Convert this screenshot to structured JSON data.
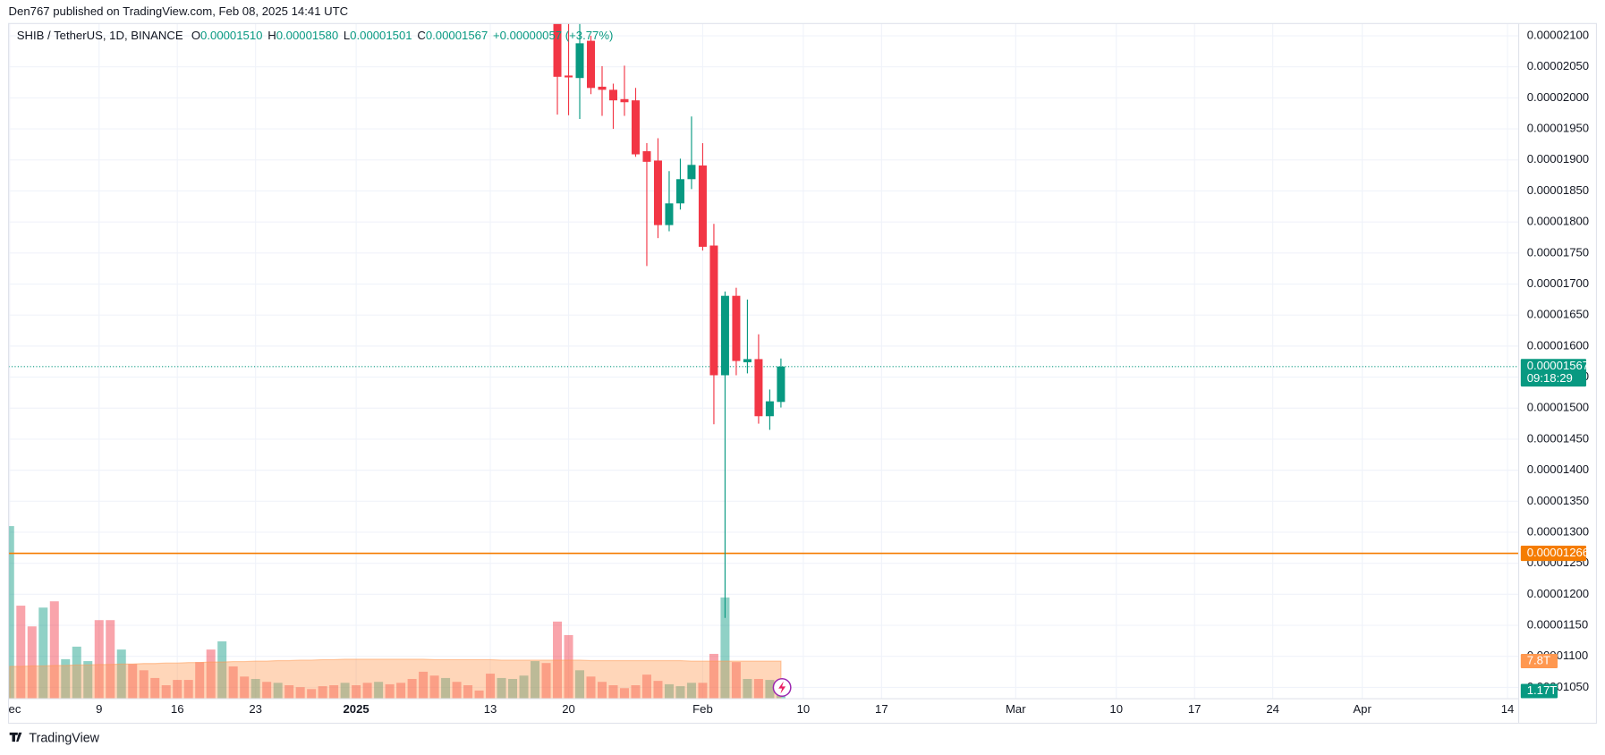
{
  "header": {
    "published": "Den767 published on TradingView.com, Feb 08, 2025 14:41 UTC"
  },
  "footer": {
    "brand": "TradingView"
  },
  "chart_data": {
    "type": "candlestick",
    "title": "SHIB / TetherUS, 1D, BINANCE",
    "quote": [
      {
        "key": "O",
        "value": "0.00001510"
      },
      {
        "key": "H",
        "value": "0.00001580"
      },
      {
        "key": "L",
        "value": "0.00001501"
      },
      {
        "key": "C",
        "value": "0.00001567"
      }
    ],
    "change": "+0.00000057 (+3.77%)",
    "up_color": "#089981",
    "down_color": "#f23645",
    "x": [
      49,
      50,
      51,
      52,
      53,
      54,
      55,
      56,
      57,
      58,
      59,
      60,
      61,
      62,
      63,
      64,
      65,
      66,
      67,
      68,
      69
    ],
    "open": [
      2.13e-05,
      2.036e-05,
      2.032e-05,
      2.092e-05,
      2.018e-05,
      2.013e-05,
      1.998e-05,
      1.996e-05,
      1.914e-05,
      1.899e-05,
      1.795e-05,
      1.83e-05,
      1.869e-05,
      1.891e-05,
      1.762e-05,
      1.553e-05,
      1.681e-05,
      1.574e-05,
      1.579e-05,
      1.487e-05,
      1.51e-05
    ],
    "high": [
      2.16e-05,
      2.12e-05,
      2.12e-05,
      2.1e-05,
      2.051e-05,
      2.023e-05,
      2.052e-05,
      2.016e-05,
      1.927e-05,
      1.935e-05,
      1.882e-05,
      1.902e-05,
      1.97e-05,
      1.927e-05,
      1.797e-05,
      1.688e-05,
      1.694e-05,
      1.675e-05,
      1.619e-05,
      1.53e-05,
      1.58e-05
    ],
    "low": [
      1.973e-05,
      1.972e-05,
      1.966e-05,
      2.006e-05,
      1.971e-05,
      1.95e-05,
      1.971e-05,
      1.905e-05,
      1.729e-05,
      1.774e-05,
      1.785e-05,
      1.82e-05,
      1.853e-05,
      1.754e-05,
      1.474e-05,
      1.162e-05,
      1.553e-05,
      1.556e-05,
      1.475e-05,
      1.465e-05,
      1.501e-05
    ],
    "close": [
      2.034e-05,
      2.033e-05,
      2.088e-05,
      2.016e-05,
      2.013e-05,
      1.996e-05,
      1.993e-05,
      1.909e-05,
      1.897e-05,
      1.795e-05,
      1.83e-05,
      1.869e-05,
      1.892e-05,
      1.76e-05,
      1.553e-05,
      1.681e-05,
      1.576e-05,
      1.579e-05,
      1.487e-05,
      1.511e-05,
      1.567e-05
    ],
    "xlim": [
      -0.1,
      135
    ],
    "xticks": [
      {
        "value": 0,
        "label": "ec"
      },
      {
        "value": 8,
        "label": "9"
      },
      {
        "value": 15,
        "label": "16"
      },
      {
        "value": 22,
        "label": "23"
      },
      {
        "value": 31,
        "label": "2025"
      },
      {
        "value": 43,
        "label": "13"
      },
      {
        "value": 50,
        "label": "20"
      },
      {
        "value": 62,
        "label": "Feb"
      },
      {
        "value": 71,
        "label": "10"
      },
      {
        "value": 78,
        "label": "17"
      },
      {
        "value": 90,
        "label": "Mar"
      },
      {
        "value": 99,
        "label": "10"
      },
      {
        "value": 106,
        "label": "17"
      },
      {
        "value": 113,
        "label": "24"
      },
      {
        "value": 121,
        "label": "Apr"
      },
      {
        "value": 134,
        "label": "14"
      }
    ],
    "ylim": [
      1.0317e-05,
      2.1198e-05
    ],
    "yticks": [
      {
        "value": 2.1e-05,
        "label": "0.00002100"
      },
      {
        "value": 2.05e-05,
        "label": "0.00002050"
      },
      {
        "value": 2e-05,
        "label": "0.00002000"
      },
      {
        "value": 1.95e-05,
        "label": "0.00001950"
      },
      {
        "value": 1.9e-05,
        "label": "0.00001900"
      },
      {
        "value": 1.85e-05,
        "label": "0.00001850"
      },
      {
        "value": 1.8e-05,
        "label": "0.00001800"
      },
      {
        "value": 1.75e-05,
        "label": "0.00001750"
      },
      {
        "value": 1.7e-05,
        "label": "0.00001700"
      },
      {
        "value": 1.65e-05,
        "label": "0.00001650"
      },
      {
        "value": 1.6e-05,
        "label": "0.00001600"
      },
      {
        "value": 1.55e-05,
        "label": "0.00001550"
      },
      {
        "value": 1.5e-05,
        "label": "0.00001500"
      },
      {
        "value": 1.45e-05,
        "label": "0.00001450"
      },
      {
        "value": 1.4e-05,
        "label": "0.00001400"
      },
      {
        "value": 1.35e-05,
        "label": "0.00001350"
      },
      {
        "value": 1.3e-05,
        "label": "0.00001300"
      },
      {
        "value": 1.25e-05,
        "label": "0.00001250"
      },
      {
        "value": 1.2e-05,
        "label": "0.00001200"
      },
      {
        "value": 1.15e-05,
        "label": "0.00001150"
      },
      {
        "value": 1.1e-05,
        "label": "0.00001100"
      },
      {
        "value": 1.05e-05,
        "label": "0.00001050"
      }
    ],
    "grid": true,
    "last_price": {
      "value": 1.567e-05,
      "label": "0.00001567",
      "countdown": "09:18:29",
      "color": "#089981"
    },
    "horizontal_line": {
      "value": 1.266e-05,
      "label": "0.00001266",
      "color": "#f57c00"
    },
    "volume": {
      "ylim": [
        0,
        140
      ],
      "x": [
        0,
        1,
        2,
        3,
        4,
        5,
        6,
        7,
        8,
        9,
        10,
        11,
        12,
        13,
        14,
        15,
        16,
        17,
        18,
        19,
        20,
        21,
        22,
        23,
        24,
        25,
        26,
        27,
        28,
        29,
        30,
        31,
        32,
        33,
        34,
        35,
        36,
        37,
        38,
        39,
        40,
        41,
        42,
        43,
        44,
        45,
        46,
        47,
        48,
        49,
        50,
        51,
        52,
        53,
        54,
        55,
        56,
        57,
        58,
        59,
        60,
        61,
        62,
        63,
        64,
        65,
        66,
        67,
        68,
        69
      ],
      "values": [
        35.8,
        19.3,
        15.0,
        18.9,
        20.2,
        8.2,
        10.8,
        7.8,
        16.3,
        16.3,
        10.2,
        7.2,
        5.9,
        4.3,
        2.8,
        3.9,
        3.9,
        7.6,
        10.2,
        11.9,
        6.7,
        4.6,
        4.1,
        3.5,
        3.3,
        2.8,
        2.4,
        2.0,
        2.6,
        2.8,
        3.3,
        2.8,
        3.3,
        3.5,
        3.0,
        3.3,
        4.1,
        5.6,
        4.8,
        4.3,
        3.5,
        2.8,
        1.7,
        5.2,
        4.3,
        4.1,
        4.8,
        7.8,
        7.4,
        16.0,
        13.2,
        5.9,
        4.6,
        3.5,
        2.8,
        2.2,
        2.8,
        5.0,
        3.7,
        3.0,
        2.6,
        3.3,
        3.3,
        9.3,
        21.0,
        7.6,
        4.1,
        4.1,
        3.9,
        1.17
      ],
      "colors": [
        "#089981",
        "#f23645",
        "#f23645",
        "#089981",
        "#f23645",
        "#089981",
        "#089981",
        "#089981",
        "#f23645",
        "#f23645",
        "#089981",
        "#f23645",
        "#f23645",
        "#f23645",
        "#f23645",
        "#f23645",
        "#f23645",
        "#f23645",
        "#f23645",
        "#089981",
        "#f23645",
        "#f23645",
        "#089981",
        "#f23645",
        "#089981",
        "#f23645",
        "#f23645",
        "#f23645",
        "#f23645",
        "#f23645",
        "#089981",
        "#f23645",
        "#f23645",
        "#089981",
        "#f23645",
        "#f23645",
        "#f23645",
        "#f23645",
        "#f23645",
        "#089981",
        "#f23645",
        "#f23645",
        "#f23645",
        "#f23645",
        "#089981",
        "#089981",
        "#089981",
        "#089981",
        "#f23645",
        "#f23645",
        "#f23645",
        "#089981",
        "#f23645",
        "#f23645",
        "#f23645",
        "#f23645",
        "#f23645",
        "#f23645",
        "#f23645",
        "#089981",
        "#089981",
        "#089981",
        "#f23645",
        "#f23645",
        "#089981",
        "#f23645",
        "#089981",
        "#f23645",
        "#089981",
        "#089981"
      ],
      "last_label": "1.17T",
      "ma": {
        "color": "#ff9850",
        "label": "7.8T",
        "values": [
          6.7,
          6.7,
          6.8,
          6.8,
          6.9,
          6.9,
          7.0,
          7.0,
          7.1,
          7.1,
          7.2,
          7.2,
          7.3,
          7.3,
          7.4,
          7.4,
          7.5,
          7.5,
          7.6,
          7.6,
          7.7,
          7.7,
          7.8,
          7.8,
          7.9,
          7.9,
          8.0,
          8.0,
          8.1,
          8.1,
          8.2,
          8.2,
          8.2,
          8.2,
          8.2,
          8.2,
          8.2,
          8.2,
          8.1,
          8.1,
          8.1,
          8.1,
          8.1,
          8.1,
          8.0,
          8.0,
          8.0,
          8.0,
          8.0,
          8.0,
          8.0,
          8.0,
          7.9,
          7.9,
          7.9,
          7.9,
          7.9,
          7.9,
          7.9,
          7.9,
          7.9,
          7.8,
          7.8,
          7.8,
          7.8,
          7.8,
          7.8,
          7.8,
          7.8,
          7.8
        ]
      }
    }
  }
}
